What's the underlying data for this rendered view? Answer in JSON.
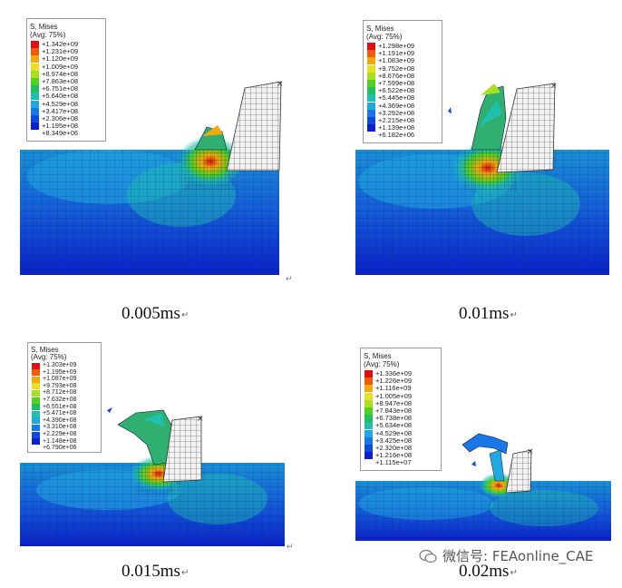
{
  "legend_title_line1": "S, Mises",
  "legend_title_line2": "(Avg: 75%)",
  "legend_colors": [
    "#e01010",
    "#f05a0a",
    "#f5a80a",
    "#e8e020",
    "#a8e020",
    "#50d020",
    "#20c060",
    "#20c0b0",
    "#20a8e0",
    "#1878e8",
    "#1048e0",
    "#0a20d0"
  ],
  "panels": [
    {
      "legend": [
        "+1.342e+09",
        "+1.231e+09",
        "+1.120e+09",
        "+1.009e+09",
        "+8.974e+08",
        "+7.863e+08",
        "+6.751e+08",
        "+5.640e+08",
        "+4.529e+08",
        "+3.417e+08",
        "+2.306e+08",
        "+1.195e+08",
        "+8.349e+06"
      ],
      "caption": "0.005ms"
    },
    {
      "legend": [
        "+1.298e+09",
        "+1.191e+09",
        "+1.083e+09",
        "+9.752e+08",
        "+8.676e+08",
        "+7.599e+08",
        "+6.522e+08",
        "+5.445e+08",
        "+4.369e+08",
        "+3.292e+08",
        "+2.215e+08",
        "+1.139e+08",
        "+6.182e+06"
      ],
      "caption": "0.01ms"
    },
    {
      "legend": [
        "+1.303e+09",
        "+1.195e+09",
        "+1.087e+09",
        "+9.793e+08",
        "+8.712e+08",
        "+7.632e+08",
        "+6.551e+08",
        "+5.471e+08",
        "+4.390e+08",
        "+3.310e+08",
        "+2.229e+08",
        "+1.148e+08",
        "+6.790e+06"
      ],
      "caption": "0.015ms"
    },
    {
      "legend": [
        "+1.336e+09",
        "+1.226e+09",
        "+1.116e+09",
        "+1.005e+09",
        "+8.947e+08",
        "+7.843e+08",
        "+6.738e+08",
        "+5.634e+08",
        "+4.529e+08",
        "+3.425e+08",
        "+2.320e+08",
        "+1.216e+08",
        "+1.115e+07"
      ],
      "caption": "0.02ms"
    }
  ],
  "watermark_text": "微信号: FEAonline_CAE"
}
